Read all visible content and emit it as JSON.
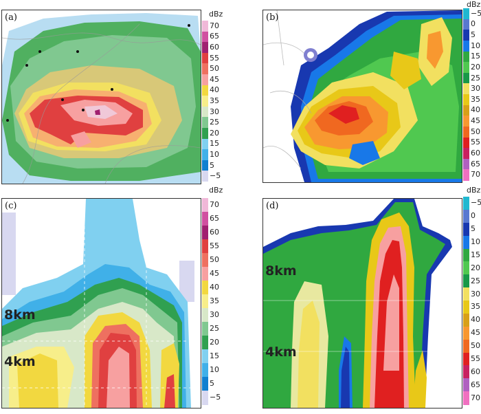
{
  "panels": {
    "a": {
      "label": "(a)"
    },
    "b": {
      "label": "(b)"
    },
    "c": {
      "label": "(c)",
      "height_labels": [
        "8km",
        "4km"
      ]
    },
    "d": {
      "label": "(d)",
      "height_labels": [
        "8km",
        "4km"
      ]
    }
  },
  "colorbar_ac": {
    "unit": "dBz",
    "ticks": [
      "70",
      "65",
      "60",
      "55",
      "50",
      "45",
      "40",
      "35",
      "30",
      "25",
      "20",
      "15",
      "10",
      "5",
      "−5"
    ],
    "colors": [
      "#f0b8d8",
      "#d050a0",
      "#a02070",
      "#e04040",
      "#ee7060",
      "#f7a0a0",
      "#f2d840",
      "#f7ee8a",
      "#d8e8c8",
      "#80c890",
      "#30a050",
      "#80d0f0",
      "#40b0e8",
      "#1080d0",
      "#d8d8f0"
    ]
  },
  "colorbar_bd": {
    "unit": "dBz",
    "ticks": [
      "−5",
      "0",
      "5",
      "10",
      "15",
      "20",
      "25",
      "30",
      "35",
      "40",
      "45",
      "50",
      "55",
      "60",
      "65",
      "70"
    ],
    "colors": [
      "#20b8d0",
      "#5878d0",
      "#1838b0",
      "#1878e8",
      "#30a840",
      "#50c850",
      "#189848",
      "#f2e060",
      "#e8c818",
      "#d8a018",
      "#f89830",
      "#f06820",
      "#e02020",
      "#c82060",
      "#b060c0",
      "#f070c0"
    ]
  }
}
